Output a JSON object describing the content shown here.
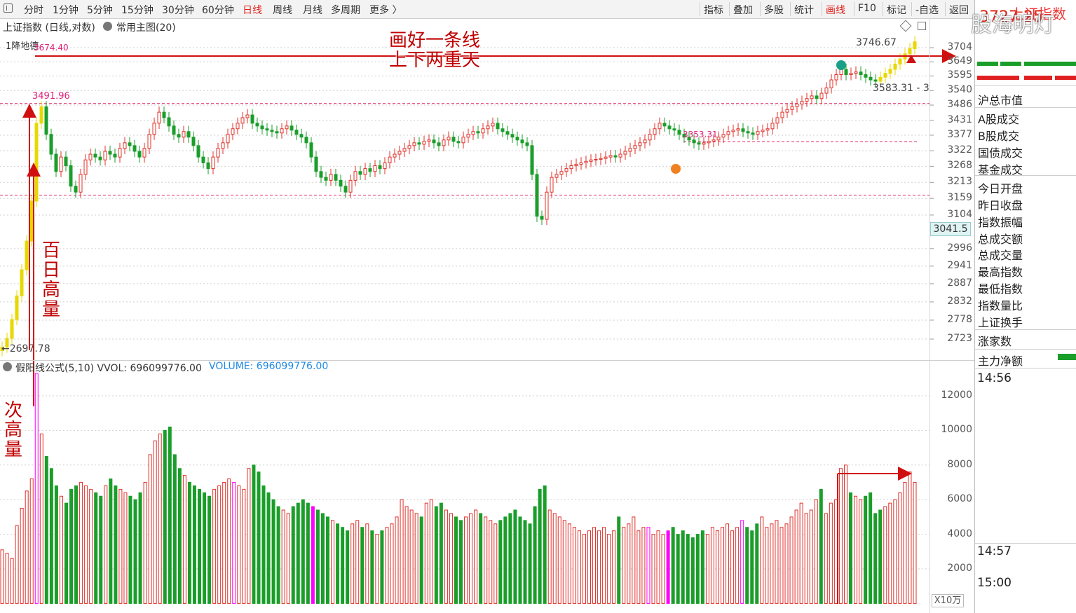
{
  "toolbar": {
    "left_items": [
      "分时",
      "1分钟",
      "5分钟",
      "15分钟",
      "30分钟",
      "60分钟",
      "日线",
      "周线",
      "月线",
      "多周期",
      "更多 〉"
    ],
    "active_item": "日线",
    "right_items": [
      "指标",
      "叠加",
      "多股",
      "统计",
      "画线",
      "F10",
      "标记",
      "-自选",
      "返回"
    ],
    "right_active": "画线"
  },
  "header": {
    "title": "上证指数 (日线,对数)",
    "indicator_menu": "常用主图(20)",
    "left_tag": "1降地德"
  },
  "watermark": "股海明灯",
  "right_panel": {
    "top_value": "3727.25",
    "top_label_red": "上证指数",
    "items": [
      "沪总市值",
      "A股成交",
      "B股成交",
      "国债成交",
      "基金成交",
      "今日开盘",
      "昨日收盘",
      "指数振幅",
      "总成交额",
      "总成交量",
      "最高指数",
      "最低指数",
      "指数量比",
      "上证换手",
      "涨家数",
      "主力净额"
    ],
    "times": [
      "14:56",
      "14:57",
      "15:00"
    ]
  },
  "annotations": {
    "line_text_1": "画好一条线",
    "line_text_2": "上下两重天",
    "vertical_1": "百日高量",
    "vertical_2": "次高量"
  },
  "chart_data": [
    {
      "type": "candlestick",
      "title": "上证指数 (日线,对数)",
      "yscale": "log",
      "ylim": [
        2670,
        3760
      ],
      "yticks": [
        3704,
        3649,
        3595,
        3540,
        3486,
        3431,
        3377,
        3322,
        3268,
        3213,
        3159,
        3104,
        2996,
        2941,
        2887,
        2832,
        2778,
        2723
      ],
      "current_price_tag": "3041.5",
      "price_labels": {
        "high_left": "3674.40",
        "level_2": "3491.96",
        "low_left": "←2697.78",
        "mid_right": "3353.31",
        "top_right": "3746.67",
        "cursor_value": "3583.31 - 3"
      },
      "reference_lines": [
        3680,
        3491.96,
        3353.31,
        3170
      ],
      "closes": [
        2700,
        2725,
        2780,
        2850,
        2930,
        3020,
        3150,
        3420,
        3480,
        3380,
        3310,
        3250,
        3300,
        3270,
        3200,
        3180,
        3240,
        3290,
        3310,
        3300,
        3290,
        3320,
        3310,
        3300,
        3330,
        3350,
        3340,
        3320,
        3300,
        3330,
        3380,
        3420,
        3460,
        3440,
        3410,
        3380,
        3370,
        3390,
        3370,
        3340,
        3300,
        3280,
        3260,
        3300,
        3330,
        3350,
        3380,
        3400,
        3420,
        3440,
        3450,
        3420,
        3410,
        3400,
        3395,
        3390,
        3385,
        3400,
        3410,
        3395,
        3380,
        3370,
        3350,
        3300,
        3250,
        3230,
        3220,
        3240,
        3220,
        3200,
        3180,
        3220,
        3250,
        3240,
        3260,
        3250,
        3270,
        3260,
        3280,
        3300,
        3310,
        3320,
        3330,
        3340,
        3350,
        3345,
        3355,
        3360,
        3350,
        3340,
        3360,
        3370,
        3355,
        3350,
        3370,
        3380,
        3390,
        3385,
        3400,
        3410,
        3420,
        3400,
        3390,
        3380,
        3370,
        3360,
        3350,
        3340,
        3240,
        3100,
        3090,
        3180,
        3230,
        3240,
        3250,
        3260,
        3270,
        3275,
        3280,
        3285,
        3290,
        3292,
        3295,
        3300,
        3305,
        3300,
        3310,
        3320,
        3330,
        3340,
        3350,
        3360,
        3380,
        3400,
        3420,
        3410,
        3400,
        3395,
        3380,
        3370,
        3360,
        3350,
        3345,
        3350,
        3355,
        3360,
        3370,
        3380,
        3390,
        3395,
        3400,
        3390,
        3385,
        3380,
        3390,
        3395,
        3400,
        3420,
        3440,
        3460,
        3470,
        3480,
        3490,
        3500,
        3510,
        3520,
        3510,
        3530,
        3550,
        3580,
        3600,
        3620,
        3600,
        3605,
        3610,
        3600,
        3590,
        3580,
        3575,
        3590,
        3605,
        3620,
        3640,
        3660,
        3680,
        3700,
        3727
      ],
      "volume": {
        "label": "假阳线公式(5,10) VVOL: 696099776.00",
        "series_label": "VOLUME: 696099776.00",
        "yticks": [
          12000,
          10000,
          8000,
          6000,
          4000,
          2000
        ],
        "unit": "X10万",
        "values": [
          3100,
          2900,
          2600,
          4500,
          5500,
          6500,
          7200,
          13300,
          9800,
          8500,
          7800,
          6800,
          6200,
          5800,
          6600,
          6800,
          7000,
          6800,
          6600,
          6400,
          6200,
          6800,
          7200,
          6800,
          6600,
          6400,
          6200,
          6000,
          6400,
          7000,
          8600,
          9400,
          9800,
          10000,
          10200,
          8600,
          7800,
          7400,
          7000,
          6800,
          6600,
          6400,
          6200,
          6600,
          6800,
          7000,
          7200,
          7000,
          6800,
          6600,
          7800,
          8000,
          7600,
          6800,
          6400,
          6000,
          5600,
          5400,
          5200,
          5600,
          5800,
          6000,
          5800,
          5600,
          5400,
          5200,
          5000,
          4800,
          4600,
          4400,
          4200,
          4600,
          4800,
          4400,
          4600,
          4200,
          4000,
          4200,
          4400,
          4600,
          5000,
          6000,
          5600,
          5400,
          5200,
          5000,
          5800,
          6000,
          5600,
          5800,
          5400,
          5200,
          5000,
          4800,
          5000,
          5200,
          5400,
          5200,
          5000,
          4800,
          4600,
          4800,
          5000,
          5200,
          5400,
          5000,
          4800,
          4600,
          5600,
          6600,
          6800,
          5400,
          5200,
          5000,
          4800,
          4600,
          4400,
          4200,
          4000,
          4200,
          4400,
          4200,
          4400,
          4000,
          4200,
          5000,
          4400,
          4600,
          5000,
          4200,
          4400,
          4400,
          4000,
          4200,
          4000,
          4200,
          4400,
          4000,
          4200,
          4000,
          3800,
          4000,
          4200,
          4000,
          4400,
          4200,
          4400,
          4600,
          4200,
          4400,
          4800,
          4400,
          4200,
          4600,
          5000,
          4400,
          4600,
          4800,
          4400,
          4600,
          5000,
          5400,
          5800,
          5200,
          5400,
          6000,
          6600,
          5200,
          5800,
          6000,
          7800,
          8000,
          6400,
          6200,
          6000,
          6200,
          6400,
          5200,
          5400,
          5600,
          5800,
          6000,
          6400,
          7000,
          7600,
          7000
        ]
      }
    }
  ]
}
